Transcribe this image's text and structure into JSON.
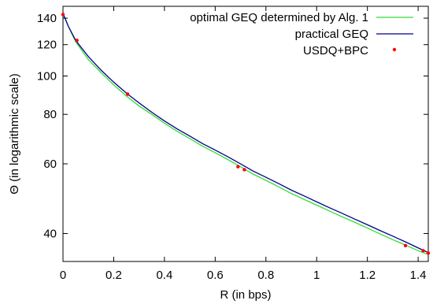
{
  "chart_data": {
    "type": "line",
    "xlabel": "R (in bps)",
    "ylabel": "Θ (in logarithmic scale)",
    "x_axis": {
      "range": [
        0,
        1.44
      ],
      "ticks": [
        0,
        0.2,
        0.4,
        0.6,
        0.8,
        1,
        1.2,
        1.4
      ],
      "tick_labels": [
        "0",
        "0.2",
        "0.4",
        "0.6",
        "0.8",
        "1",
        "1.2",
        "1.4"
      ]
    },
    "y_axis": {
      "scale": "log",
      "range": [
        34,
        150
      ],
      "ticks": [
        40,
        60,
        80,
        100,
        120,
        140
      ],
      "tick_labels": [
        "40",
        "60",
        "80",
        "100",
        "120",
        "140"
      ]
    },
    "grid": false,
    "legend_position": "top-right",
    "series": [
      {
        "name": "optimal GEQ determined by Alg. 1",
        "style": "line",
        "color": "#33dd33",
        "points": [
          [
            0,
            144
          ],
          [
            0.02,
            134
          ],
          [
            0.05,
            122
          ],
          [
            0.1,
            110
          ],
          [
            0.15,
            102
          ],
          [
            0.2,
            95
          ],
          [
            0.25,
            89
          ],
          [
            0.3,
            84
          ],
          [
            0.35,
            80
          ],
          [
            0.4,
            76
          ],
          [
            0.45,
            72.5
          ],
          [
            0.5,
            69.5
          ],
          [
            0.55,
            66.5
          ],
          [
            0.6,
            64
          ],
          [
            0.65,
            61.5
          ],
          [
            0.7,
            59
          ],
          [
            0.75,
            56.5
          ],
          [
            0.8,
            54.5
          ],
          [
            0.85,
            52.5
          ],
          [
            0.9,
            50.5
          ],
          [
            0.95,
            48.8
          ],
          [
            1.0,
            47.2
          ],
          [
            1.05,
            45.6
          ],
          [
            1.1,
            44.1
          ],
          [
            1.15,
            42.7
          ],
          [
            1.2,
            41.3
          ],
          [
            1.25,
            39.9
          ],
          [
            1.3,
            38.6
          ],
          [
            1.35,
            37.4
          ],
          [
            1.4,
            36.2
          ],
          [
            1.44,
            35.4
          ]
        ]
      },
      {
        "name": "practical GEQ",
        "style": "line",
        "color": "#00008b",
        "points": [
          [
            0,
            144
          ],
          [
            0.02,
            134
          ],
          [
            0.05,
            123
          ],
          [
            0.1,
            112
          ],
          [
            0.15,
            103.5
          ],
          [
            0.2,
            96.5
          ],
          [
            0.25,
            90.5
          ],
          [
            0.3,
            85.5
          ],
          [
            0.35,
            81
          ],
          [
            0.4,
            77
          ],
          [
            0.45,
            73.5
          ],
          [
            0.5,
            70.5
          ],
          [
            0.55,
            67.5
          ],
          [
            0.6,
            65
          ],
          [
            0.65,
            62.5
          ],
          [
            0.7,
            60
          ],
          [
            0.75,
            57.5
          ],
          [
            0.8,
            55.5
          ],
          [
            0.85,
            53.5
          ],
          [
            0.9,
            51.5
          ],
          [
            0.95,
            49.8
          ],
          [
            1.0,
            48.1
          ],
          [
            1.05,
            46.5
          ],
          [
            1.1,
            45
          ],
          [
            1.15,
            43.5
          ],
          [
            1.2,
            42.1
          ],
          [
            1.25,
            40.7
          ],
          [
            1.3,
            39.4
          ],
          [
            1.35,
            38.1
          ],
          [
            1.4,
            36.8
          ],
          [
            1.44,
            35.8
          ]
        ]
      },
      {
        "name": "USDQ+BPC",
        "style": "points",
        "color": "#ff0000",
        "points": [
          [
            0.0,
            143
          ],
          [
            0.055,
            123
          ],
          [
            0.255,
            90
          ],
          [
            0.69,
            59
          ],
          [
            0.715,
            58
          ],
          [
            1.35,
            37.3
          ],
          [
            1.42,
            36.2
          ],
          [
            1.44,
            35.7
          ]
        ]
      }
    ]
  }
}
